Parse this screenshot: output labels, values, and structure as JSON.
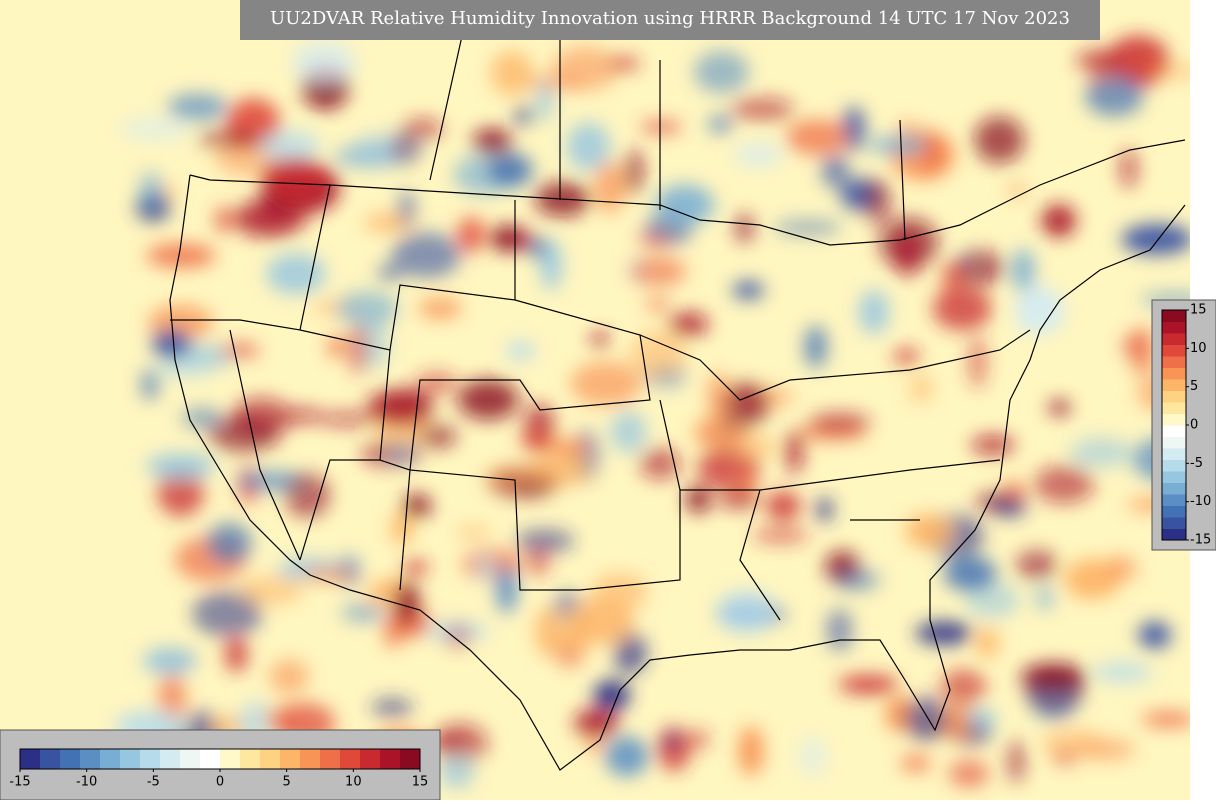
{
  "title": "UU2DVAR Relative Humidity Innovation using HRRR Background 14 UTC 17 Nov 2023",
  "colorbar": {
    "lim": [
      -15,
      15
    ],
    "ticks": [
      -15,
      -10,
      -5,
      0,
      5,
      10,
      15
    ],
    "colors": [
      "#2b2f85",
      "#3953a3",
      "#4372b4",
      "#5b8fc4",
      "#79aed4",
      "#97c6e0",
      "#b6dbeb",
      "#d4ebf2",
      "#eef7f4",
      "#ffffff",
      "#fff9c9",
      "#fee8a0",
      "#fdd283",
      "#fdb568",
      "#f89456",
      "#ef7048",
      "#e0493a",
      "#c92a2f",
      "#ab1428",
      "#8a0a22"
    ]
  }
}
